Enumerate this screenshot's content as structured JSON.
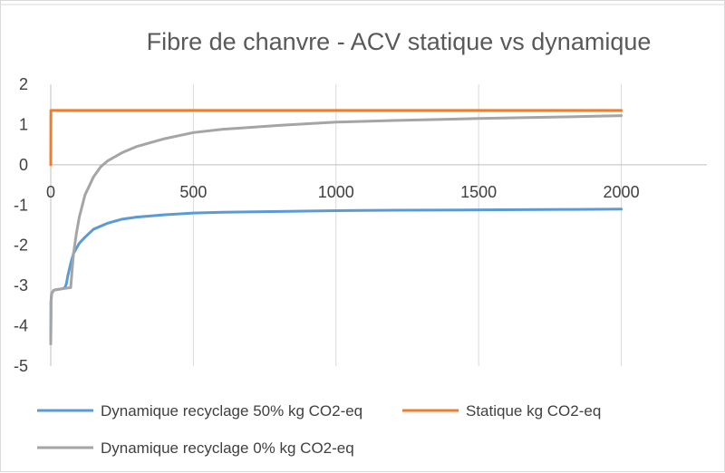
{
  "chart_data": {
    "type": "line",
    "title": "Fibre de chanvre - ACV statique vs dynamique",
    "xlabel": "",
    "ylabel": "",
    "xlim": [
      0,
      2300
    ],
    "ylim": [
      -5,
      2
    ],
    "x_ticks": [
      0,
      500,
      1000,
      1500,
      2000
    ],
    "y_ticks": [
      2,
      1,
      0,
      -1,
      -2,
      -3,
      -4,
      -5
    ],
    "x_tick_labels": [
      "0",
      "500",
      "1000",
      "1500",
      "2000"
    ],
    "y_tick_labels": [
      "2",
      "1",
      "0",
      "-1",
      "-2",
      "-3",
      "-4",
      "-5"
    ],
    "grid": "vertical",
    "legend_position": "bottom",
    "series": [
      {
        "name": "Dynamique recyclage 50% kg CO2-eq",
        "color": "#5b9bd5",
        "x": [
          0,
          1,
          3,
          10,
          20,
          30,
          40,
          50,
          55,
          60,
          70,
          80,
          100,
          120,
          150,
          200,
          250,
          300,
          400,
          500,
          600,
          800,
          1000,
          1200,
          1500,
          1800,
          2000
        ],
        "y": [
          -4.35,
          -3.4,
          -3.2,
          -3.12,
          -3.1,
          -3.09,
          -3.08,
          -3.05,
          -2.95,
          -2.75,
          -2.45,
          -2.2,
          -1.95,
          -1.8,
          -1.6,
          -1.45,
          -1.35,
          -1.3,
          -1.24,
          -1.2,
          -1.18,
          -1.16,
          -1.14,
          -1.13,
          -1.12,
          -1.11,
          -1.1
        ]
      },
      {
        "name": "Statique kg CO2-eq",
        "color": "#ed7d31",
        "x": [
          0,
          0.5,
          2000
        ],
        "y": [
          0,
          1.35,
          1.35
        ]
      },
      {
        "name": "Dynamique recyclage 0% kg CO2-eq",
        "color": "#a5a5a5",
        "x": [
          0,
          1,
          3,
          10,
          20,
          40,
          60,
          70,
          75,
          80,
          90,
          100,
          120,
          150,
          175,
          200,
          250,
          300,
          400,
          500,
          600,
          800,
          1000,
          1200,
          1500,
          1800,
          2000
        ],
        "y": [
          -4.45,
          -3.4,
          -3.2,
          -3.12,
          -3.1,
          -3.08,
          -3.06,
          -3.05,
          -2.6,
          -2.2,
          -1.7,
          -1.3,
          -0.75,
          -0.3,
          -0.05,
          0.1,
          0.3,
          0.45,
          0.65,
          0.8,
          0.88,
          0.98,
          1.06,
          1.1,
          1.15,
          1.19,
          1.22
        ]
      }
    ]
  }
}
